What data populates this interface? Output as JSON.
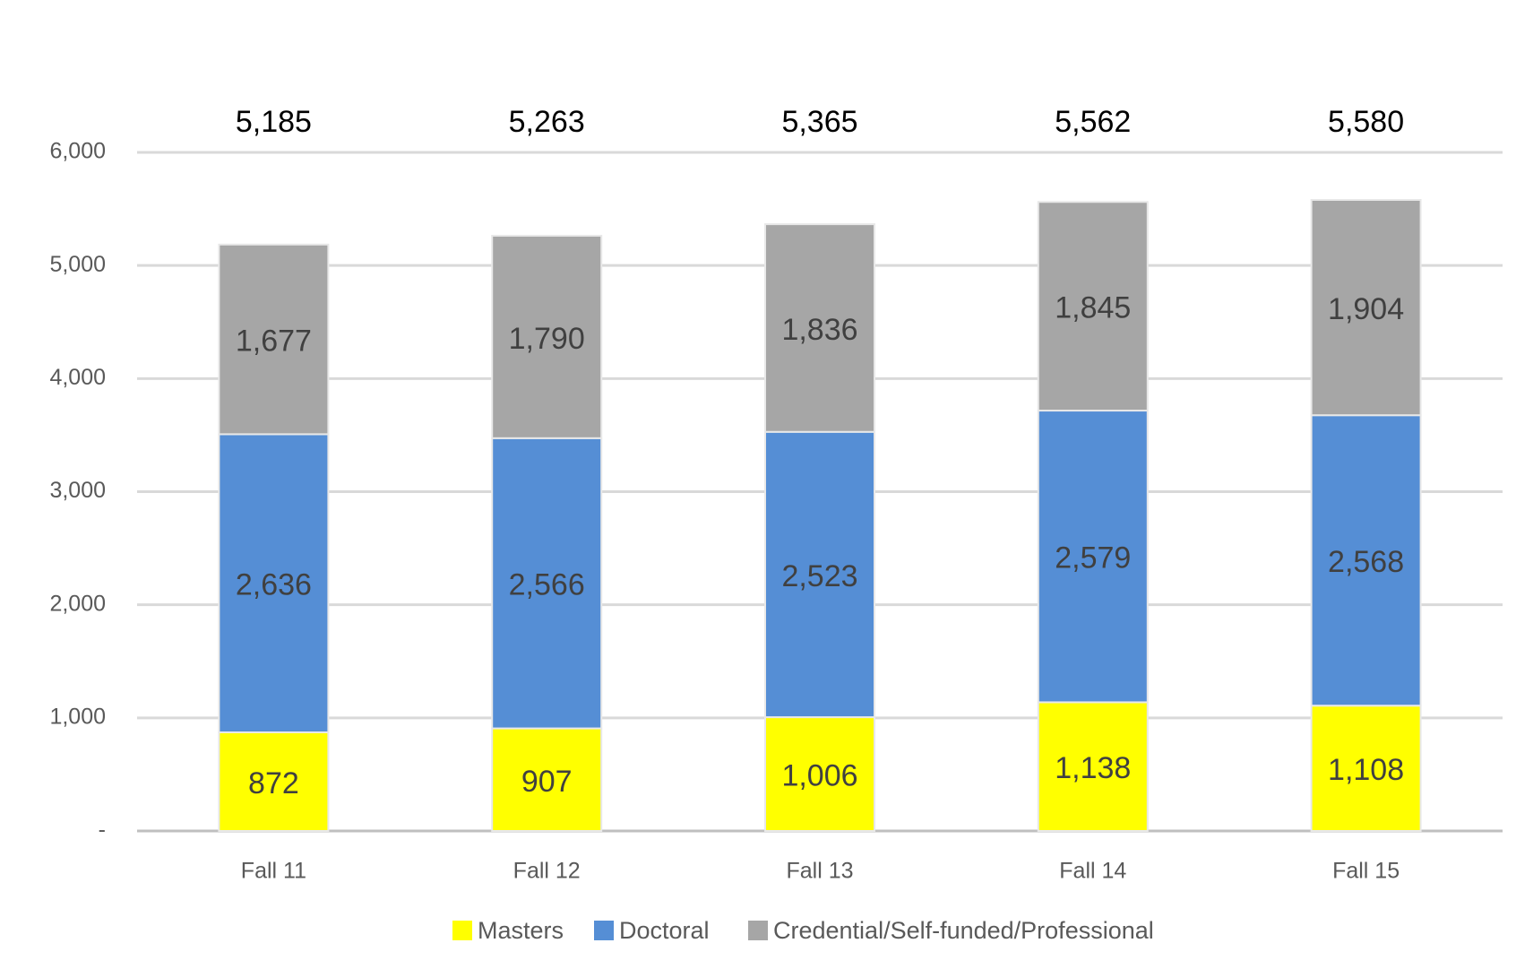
{
  "chart_data": {
    "type": "stacked-bar",
    "categories": [
      "Fall 11",
      "Fall 12",
      "Fall 13",
      "Fall 14",
      "Fall 15"
    ],
    "series": [
      {
        "name": "Masters",
        "color": "#ffff00",
        "values": [
          872,
          907,
          1006,
          1138,
          1108
        ],
        "value_labels": [
          "872",
          "907",
          "1,006",
          "1,138",
          "1,108"
        ]
      },
      {
        "name": "Doctoral",
        "color": "#558ed5",
        "values": [
          2636,
          2566,
          2523,
          2579,
          2568
        ],
        "value_labels": [
          "2,636",
          "2,566",
          "2,523",
          "2,579",
          "2,568"
        ]
      },
      {
        "name": "Credential/Self-funded/Professional",
        "color": "#a6a6a6",
        "values": [
          1677,
          1790,
          1836,
          1845,
          1904
        ],
        "value_labels": [
          "1,677",
          "1,790",
          "1,836",
          "1,845",
          "1,904"
        ]
      }
    ],
    "totals": {
      "values": [
        5185,
        5263,
        5365,
        5562,
        5580
      ],
      "value_labels": [
        "5,185",
        "5,263",
        "5,365",
        "5,562",
        "5,580"
      ]
    },
    "ylim": [
      0,
      6000
    ],
    "yticks": [
      {
        "value": 0,
        "label": "-"
      },
      {
        "value": 1000,
        "label": "1,000"
      },
      {
        "value": 2000,
        "label": "2,000"
      },
      {
        "value": 3000,
        "label": "3,000"
      },
      {
        "value": 4000,
        "label": "4,000"
      },
      {
        "value": 5000,
        "label": "5,000"
      },
      {
        "value": 6000,
        "label": "6,000"
      }
    ],
    "grid": true,
    "legend": "bottom"
  }
}
